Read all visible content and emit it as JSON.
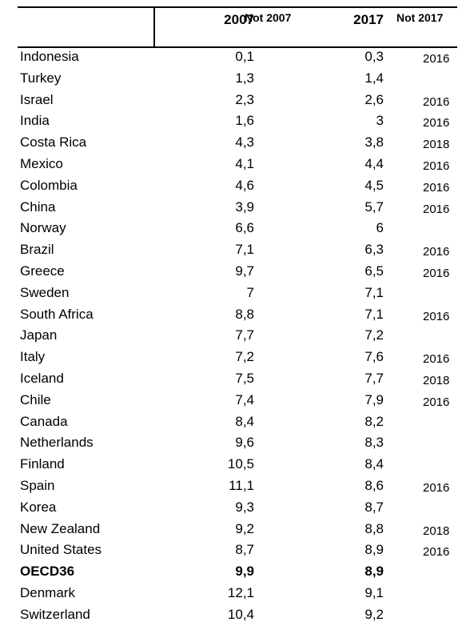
{
  "headers": {
    "c2007": "2007",
    "not2007": "Not 2007",
    "c2017": "2017",
    "not2017": "Not 2017"
  },
  "rows": [
    {
      "country": "Indonesia",
      "v2007": "0,1",
      "v2017": "0,3",
      "not2017": "2016"
    },
    {
      "country": "Turkey",
      "v2007": "1,3",
      "v2017": "1,4",
      "not2017": ""
    },
    {
      "country": "Israel",
      "v2007": "2,3",
      "v2017": "2,6",
      "not2017": "2016"
    },
    {
      "country": "India",
      "v2007": "1,6",
      "v2017": "3",
      "not2017": "2016"
    },
    {
      "country": "Costa Rica",
      "v2007": "4,3",
      "v2017": "3,8",
      "not2017": "2018"
    },
    {
      "country": "Mexico",
      "v2007": "4,1",
      "v2017": "4,4",
      "not2017": "2016"
    },
    {
      "country": "Colombia",
      "v2007": "4,6",
      "v2017": "4,5",
      "not2017": "2016"
    },
    {
      "country": "China",
      "v2007": "3,9",
      "v2017": "5,7",
      "not2017": "2016"
    },
    {
      "country": "Norway",
      "v2007": "6,6",
      "v2017": "6",
      "not2017": ""
    },
    {
      "country": "Brazil",
      "v2007": "7,1",
      "v2017": "6,3",
      "not2017": "2016"
    },
    {
      "country": "Greece",
      "v2007": "9,7",
      "v2017": "6,5",
      "not2017": "2016"
    },
    {
      "country": "Sweden",
      "v2007": "7",
      "v2017": "7,1",
      "not2017": ""
    },
    {
      "country": "South Africa",
      "v2007": "8,8",
      "v2017": "7,1",
      "not2017": "2016"
    },
    {
      "country": "Japan",
      "v2007": "7,7",
      "v2017": "7,2",
      "not2017": ""
    },
    {
      "country": "Italy",
      "v2007": "7,2",
      "v2017": "7,6",
      "not2017": "2016"
    },
    {
      "country": "Iceland",
      "v2007": "7,5",
      "v2017": "7,7",
      "not2017": "2018"
    },
    {
      "country": "Chile",
      "v2007": "7,4",
      "v2017": "7,9",
      "not2017": "2016"
    },
    {
      "country": "Canada",
      "v2007": "8,4",
      "v2017": "8,2",
      "not2017": ""
    },
    {
      "country": "Netherlands",
      "v2007": "9,6",
      "v2017": "8,3",
      "not2017": ""
    },
    {
      "country": "Finland",
      "v2007": "10,5",
      "v2017": "8,4",
      "not2017": ""
    },
    {
      "country": "Spain",
      "v2007": "11,1",
      "v2017": "8,6",
      "not2017": "2016"
    },
    {
      "country": "Korea",
      "v2007": "9,3",
      "v2017": "8,7",
      "not2017": ""
    },
    {
      "country": "New Zealand",
      "v2007": "9,2",
      "v2017": "8,8",
      "not2017": "2018"
    },
    {
      "country": "United States",
      "v2007": "8,7",
      "v2017": "8,9",
      "not2017": "2016"
    },
    {
      "country": "OECD36",
      "v2007": "9,9",
      "v2017": "8,9",
      "not2017": "",
      "bold": true
    },
    {
      "country": "Denmark",
      "v2007": "12,1",
      "v2017": "9,1",
      "not2017": ""
    },
    {
      "country": "Switzerland",
      "v2007": "10,4",
      "v2017": "9,2",
      "not2017": ""
    }
  ]
}
